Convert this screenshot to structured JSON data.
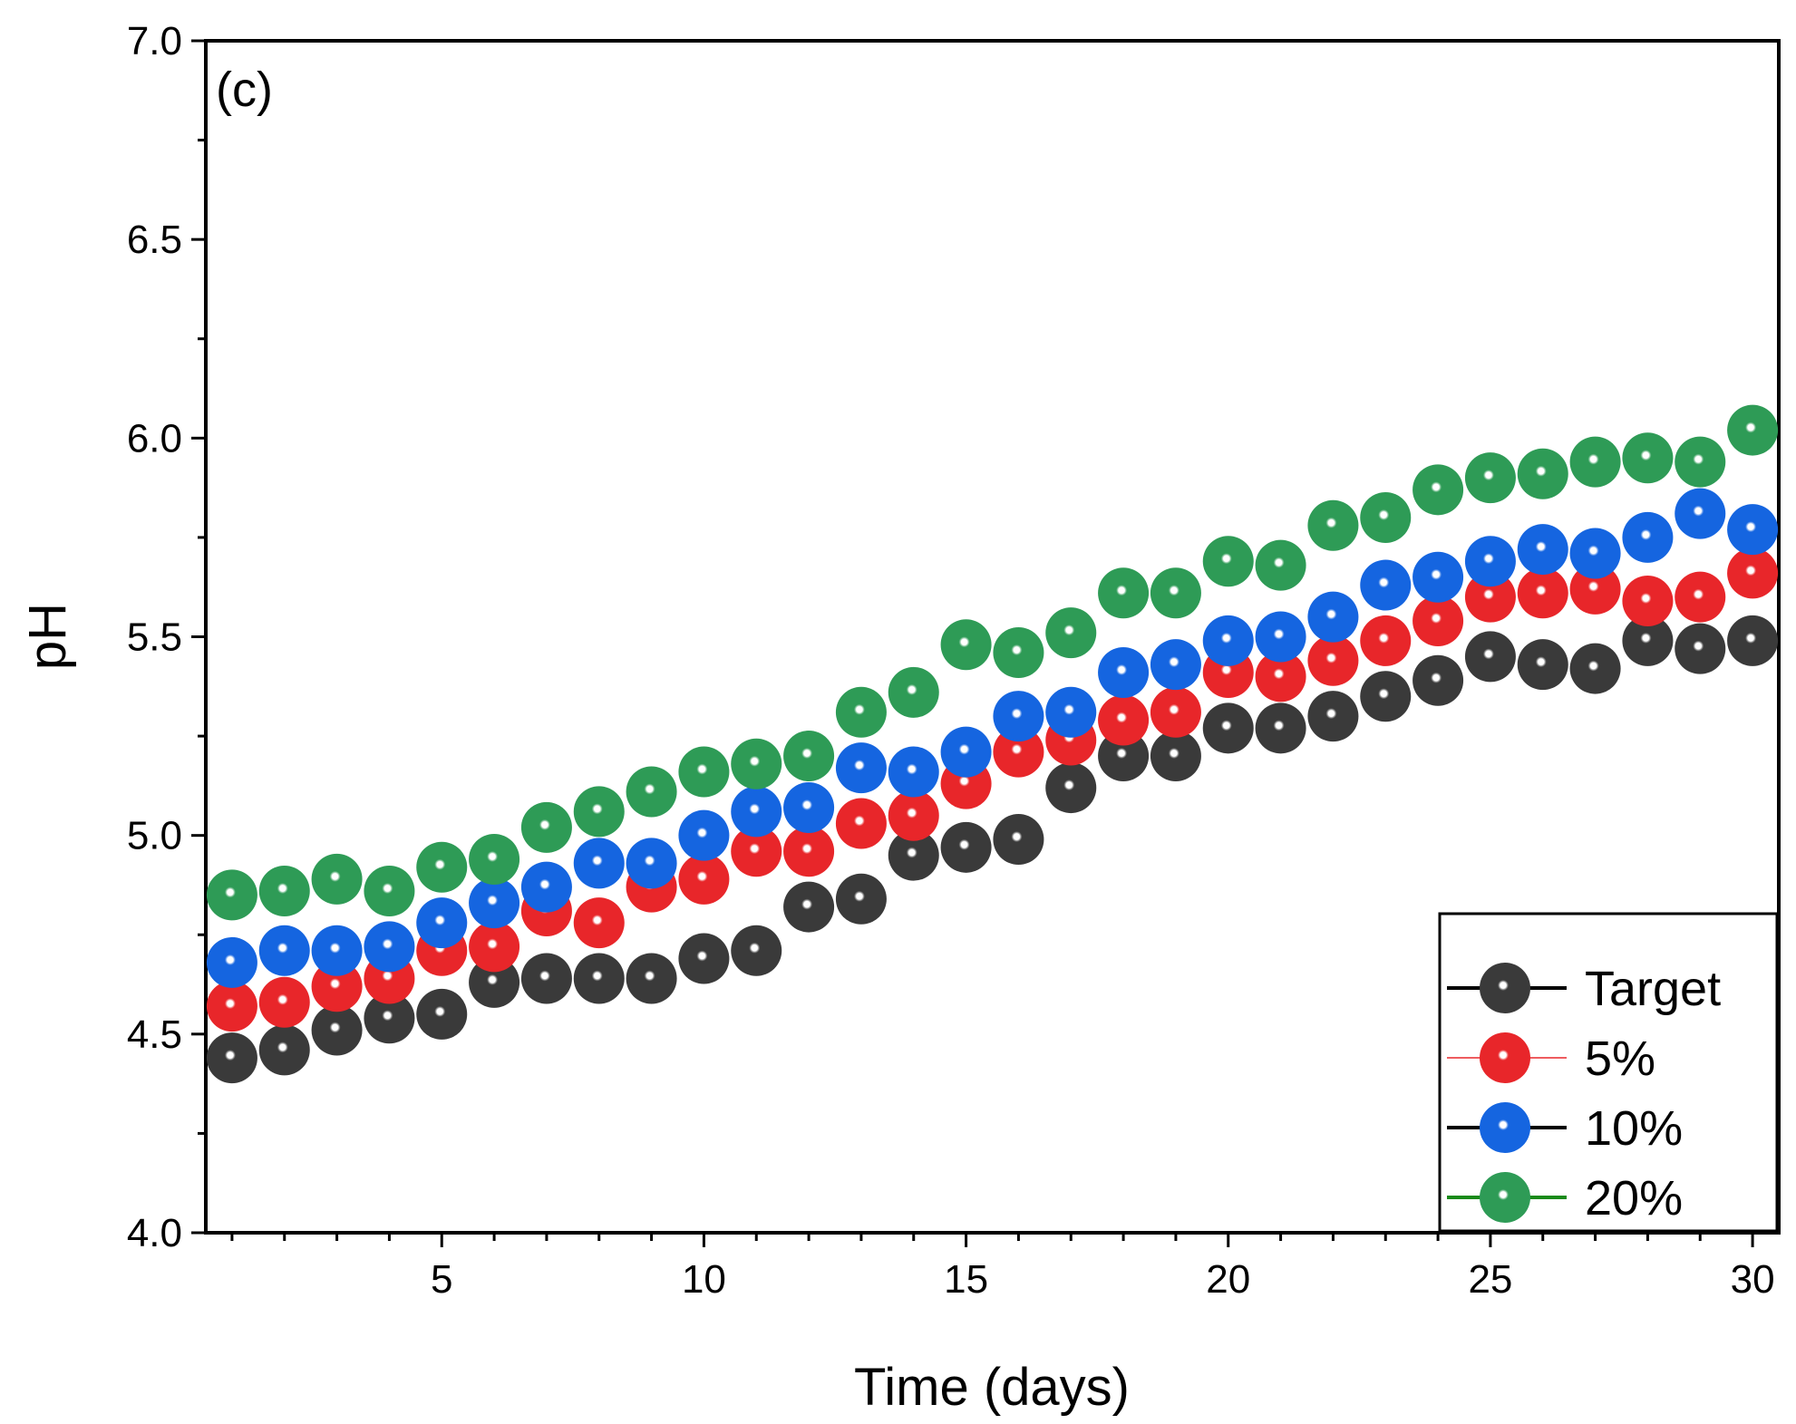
{
  "chart_data": {
    "type": "scatter",
    "panel_label": "(c)",
    "xlabel": "Time (days)",
    "ylabel": "pH",
    "xlim": [
      0.5,
      30.5
    ],
    "ylim": [
      4.0,
      7.0
    ],
    "x_ticks": [
      5,
      10,
      15,
      20,
      25,
      30
    ],
    "x_tick_labels": [
      "5",
      "10",
      "15",
      "20",
      "25",
      "30"
    ],
    "y_ticks": [
      4.0,
      4.5,
      5.0,
      5.5,
      6.0,
      6.5,
      7.0
    ],
    "y_tick_labels": [
      "4.0",
      "4.5",
      "5.0",
      "5.5",
      "6.0",
      "6.5",
      "7.0"
    ],
    "grid": false,
    "legend_position": "bottom-right",
    "x": [
      1,
      2,
      3,
      4,
      5,
      6,
      7,
      8,
      9,
      10,
      11,
      12,
      13,
      14,
      15,
      16,
      17,
      18,
      19,
      20,
      21,
      22,
      23,
      24,
      25,
      26,
      27,
      28,
      29,
      30
    ],
    "series": [
      {
        "name": "Target",
        "color": "#3a3a3a",
        "line_color": "#000000",
        "values": [
          4.44,
          4.46,
          4.51,
          4.54,
          4.55,
          4.63,
          4.64,
          4.64,
          4.64,
          4.69,
          4.71,
          4.82,
          4.84,
          4.95,
          4.97,
          4.99,
          5.12,
          5.2,
          5.2,
          5.27,
          5.27,
          5.3,
          5.35,
          5.39,
          5.45,
          5.43,
          5.42,
          5.49,
          5.47,
          5.49
        ]
      },
      {
        "name": "5%",
        "color": "#e8262a",
        "line_color": "#e8262a",
        "values": [
          4.57,
          4.58,
          4.62,
          4.64,
          4.71,
          4.72,
          4.81,
          4.78,
          4.87,
          4.89,
          4.96,
          4.96,
          5.03,
          5.05,
          5.13,
          5.21,
          5.24,
          5.29,
          5.31,
          5.41,
          5.4,
          5.44,
          5.49,
          5.54,
          5.6,
          5.61,
          5.62,
          5.59,
          5.6,
          5.66
        ]
      },
      {
        "name": "10%",
        "color": "#1565e0",
        "line_color": "#000000",
        "values": [
          4.68,
          4.71,
          4.71,
          4.72,
          4.78,
          4.83,
          4.87,
          4.93,
          4.93,
          5.0,
          5.06,
          5.07,
          5.17,
          5.16,
          5.21,
          5.3,
          5.31,
          5.41,
          5.43,
          5.49,
          5.5,
          5.55,
          5.63,
          5.65,
          5.69,
          5.72,
          5.71,
          5.75,
          5.81,
          5.77
        ]
      },
      {
        "name": "20%",
        "color": "#2e9b56",
        "line_color": "#1a8a1a",
        "values": [
          4.85,
          4.86,
          4.89,
          4.86,
          4.92,
          4.94,
          5.02,
          5.06,
          5.11,
          5.16,
          5.18,
          5.2,
          5.31,
          5.36,
          5.48,
          5.46,
          5.51,
          5.61,
          5.61,
          5.69,
          5.68,
          5.78,
          5.8,
          5.87,
          5.9,
          5.91,
          5.94,
          5.95,
          5.94,
          6.02
        ]
      }
    ]
  }
}
